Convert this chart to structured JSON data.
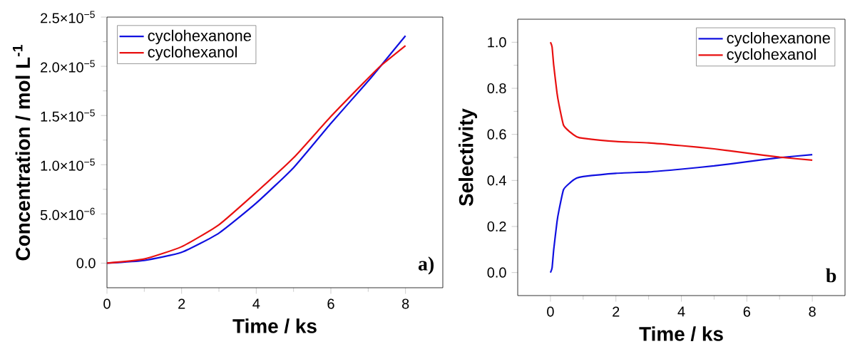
{
  "chart_data": [
    {
      "type": "line",
      "xlabel": "Time / ks",
      "ylabel": "Concentration / mol L$^{-1}$",
      "xlim": [
        0,
        9
      ],
      "ylim": [
        -2.5e-06,
        2.5e-05
      ],
      "xticks": [
        0,
        2,
        4,
        6,
        8
      ],
      "yticks": [
        {
          "value": 0,
          "label": "0.0"
        },
        {
          "value": 5e-06,
          "label": "5.0×10$^{−6}$"
        },
        {
          "value": 1e-05,
          "label": "1.0×10$^{−5}$"
        },
        {
          "value": 1.5e-05,
          "label": "1.5×10$^{−5}$"
        },
        {
          "value": 2e-05,
          "label": "2.0×10$^{−5}$"
        },
        {
          "value": 2.5e-05,
          "label": "2.5×10$^{−5}$"
        }
      ],
      "legend": "top left",
      "annotations": [
        "a)"
      ],
      "x": [
        0,
        1,
        2,
        3,
        4,
        5,
        6,
        7,
        7.35,
        8
      ],
      "series": [
        {
          "name": "cyclohexanone",
          "color": "#1010e0",
          "values": [
            0,
            2.8e-07,
            1.1e-06,
            3.05e-06,
            6.1e-06,
            9.7e-06,
            1.42e-05,
            1.85e-05,
            2.01e-05,
            2.31e-05
          ]
        },
        {
          "name": "cyclohexanol",
          "color": "#e81010",
          "values": [
            0,
            4.2e-07,
            1.67e-06,
            3.9e-06,
            7.2e-06,
            1.07e-05,
            1.49e-05,
            1.88e-05,
            2.01e-05,
            2.21e-05
          ]
        }
      ]
    },
    {
      "type": "line",
      "xlabel": "Time / ks",
      "ylabel": "Selectivity",
      "xlim": [
        -1,
        9
      ],
      "ylim": [
        -0.1,
        1.1
      ],
      "xticks": [
        0,
        2,
        4,
        6,
        8
      ],
      "yticks": [
        {
          "value": 0,
          "label": "0.0"
        },
        {
          "value": 0.2,
          "label": "0.2"
        },
        {
          "value": 0.4,
          "label": "0.4"
        },
        {
          "value": 0.6,
          "label": "0.6"
        },
        {
          "value": 0.8,
          "label": "0.8"
        },
        {
          "value": 1,
          "label": "1.0"
        }
      ],
      "legend": "top right",
      "annotations": [
        "b"
      ],
      "x": [
        0,
        0.05,
        0.1,
        0.2,
        0.26,
        0.4,
        0.6,
        0.8,
        1,
        2,
        3,
        4,
        5,
        6,
        7,
        8
      ],
      "series": [
        {
          "name": "cyclohexanone",
          "color": "#1010e0",
          "values": [
            0,
            0.02,
            0.1,
            0.22,
            0.27,
            0.36,
            0.39,
            0.41,
            0.417,
            0.431,
            0.437,
            0.449,
            0.463,
            0.481,
            0.499,
            0.512
          ]
        },
        {
          "name": "cyclohexanol",
          "color": "#e81010",
          "values": [
            1,
            0.98,
            0.9,
            0.78,
            0.73,
            0.64,
            0.61,
            0.59,
            0.583,
            0.569,
            0.563,
            0.551,
            0.537,
            0.519,
            0.501,
            0.488
          ]
        }
      ]
    }
  ]
}
